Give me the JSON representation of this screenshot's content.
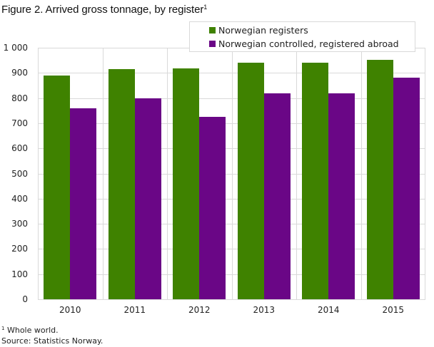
{
  "title": "Figure 2. Arrived gross tonnage, by register",
  "title_footnote_marker": "1",
  "legend": [
    {
      "label": "Norwegian registers",
      "color": "#3f8200"
    },
    {
      "label": "Norwegian controlled, registered abroad",
      "color": "#6a0686"
    }
  ],
  "footnote": {
    "marker": "1",
    "text": " Whole world."
  },
  "source": "Source: Statistics Norway.",
  "chart_data": {
    "type": "bar",
    "title": "Figure 2. Arrived gross tonnage, by register",
    "xlabel": "",
    "ylabel": "",
    "categories": [
      "2010",
      "2011",
      "2012",
      "2013",
      "2014",
      "2015"
    ],
    "series": [
      {
        "name": "Norwegian registers",
        "color": "#3f8200",
        "values": [
          890,
          915,
          918,
          940,
          940,
          952
        ]
      },
      {
        "name": "Norwegian controlled, registered abroad",
        "color": "#6a0686",
        "values": [
          760,
          800,
          725,
          820,
          820,
          880
        ]
      }
    ],
    "ylim": [
      0,
      1000
    ],
    "yticks": [
      0,
      100,
      200,
      300,
      400,
      500,
      600,
      700,
      800,
      900,
      1000
    ],
    "ytick_labels": [
      "0",
      "100",
      "200",
      "300",
      "400",
      "500",
      "600",
      "700",
      "800",
      "900",
      "1 000"
    ],
    "grid": true,
    "legend_position": "top-right"
  }
}
